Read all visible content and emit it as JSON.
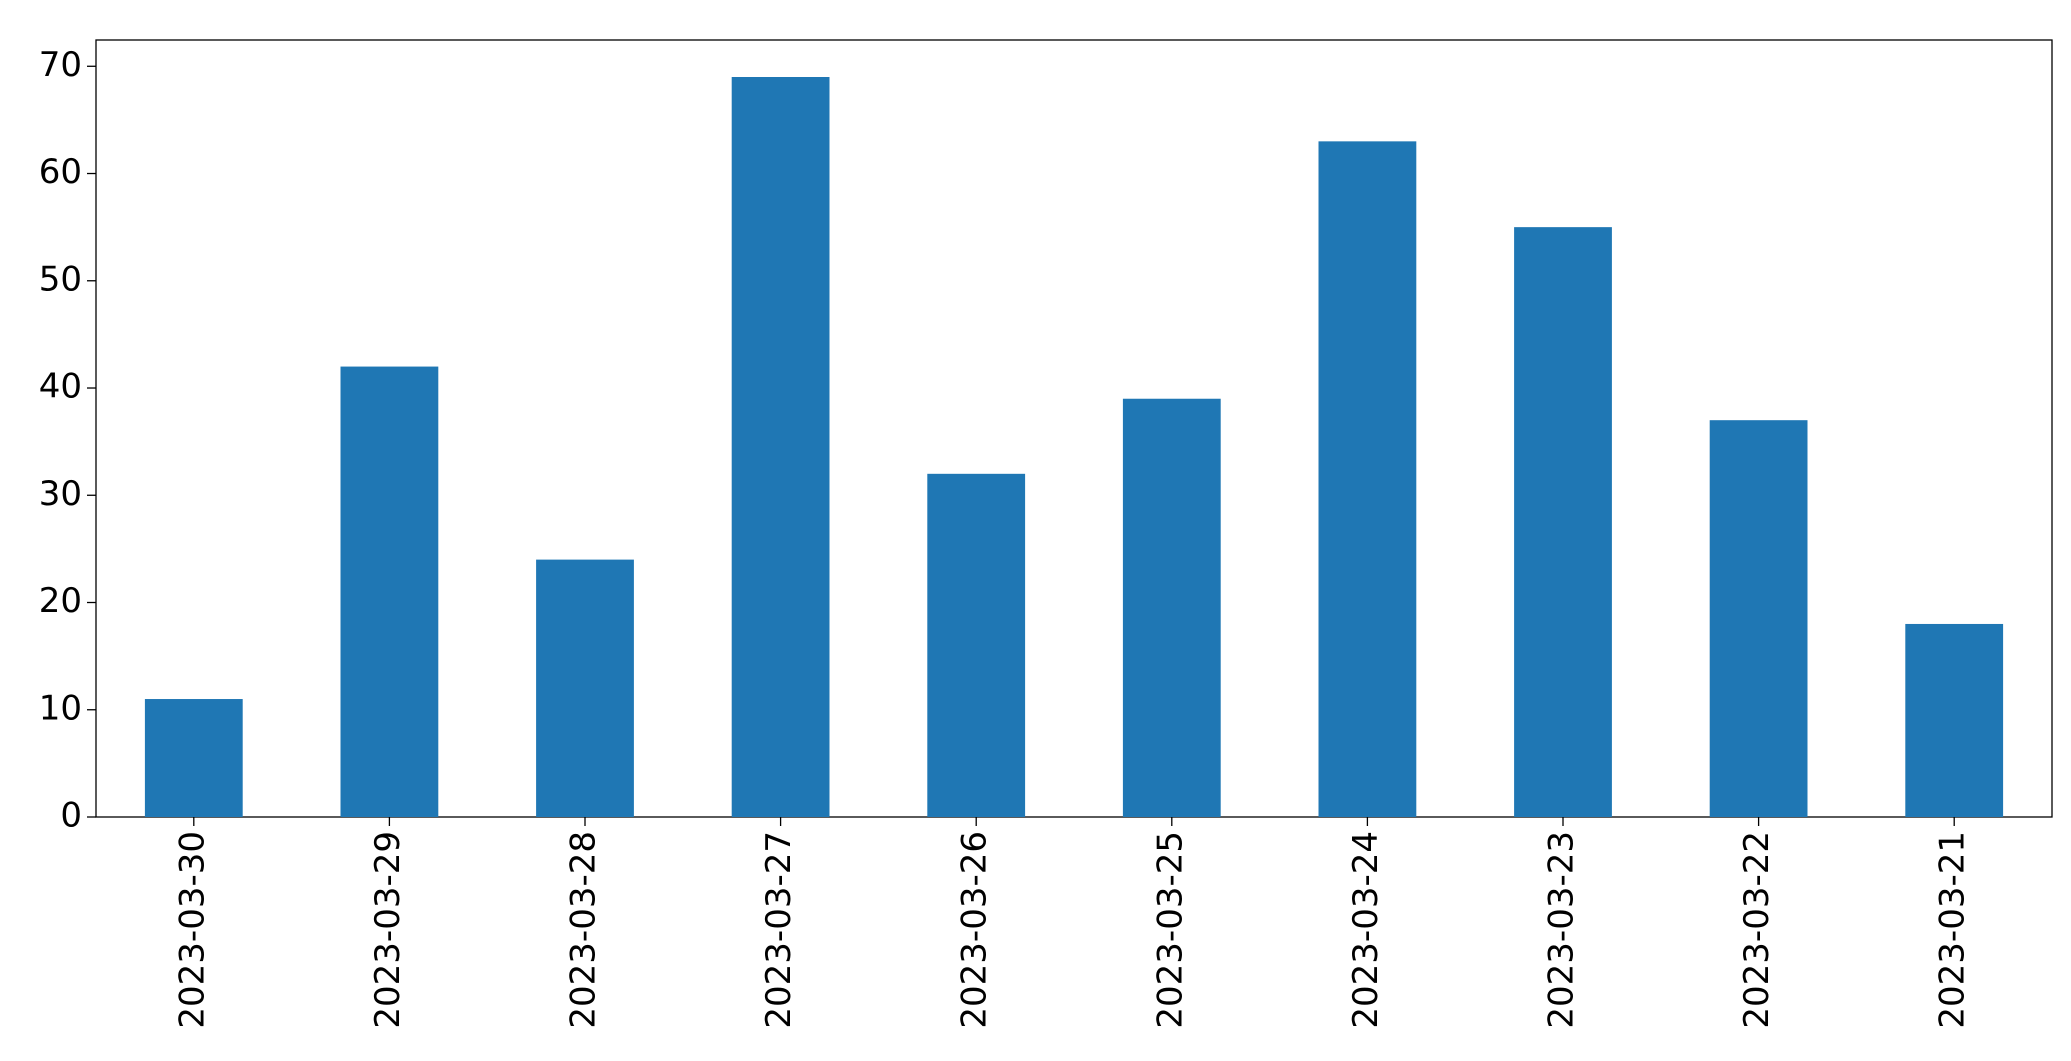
{
  "chart_data": {
    "type": "bar",
    "categories": [
      "2023-03-30",
      "2023-03-29",
      "2023-03-28",
      "2023-03-27",
      "2023-03-26",
      "2023-03-25",
      "2023-03-24",
      "2023-03-23",
      "2023-03-22",
      "2023-03-21"
    ],
    "values": [
      11,
      42,
      24,
      69,
      32,
      39,
      63,
      55,
      37,
      18
    ],
    "color": "#1f77b4",
    "ylim": [
      0,
      72.45
    ],
    "yticks": [
      0,
      10,
      20,
      30,
      40,
      50,
      60,
      70
    ],
    "grid": false
  }
}
